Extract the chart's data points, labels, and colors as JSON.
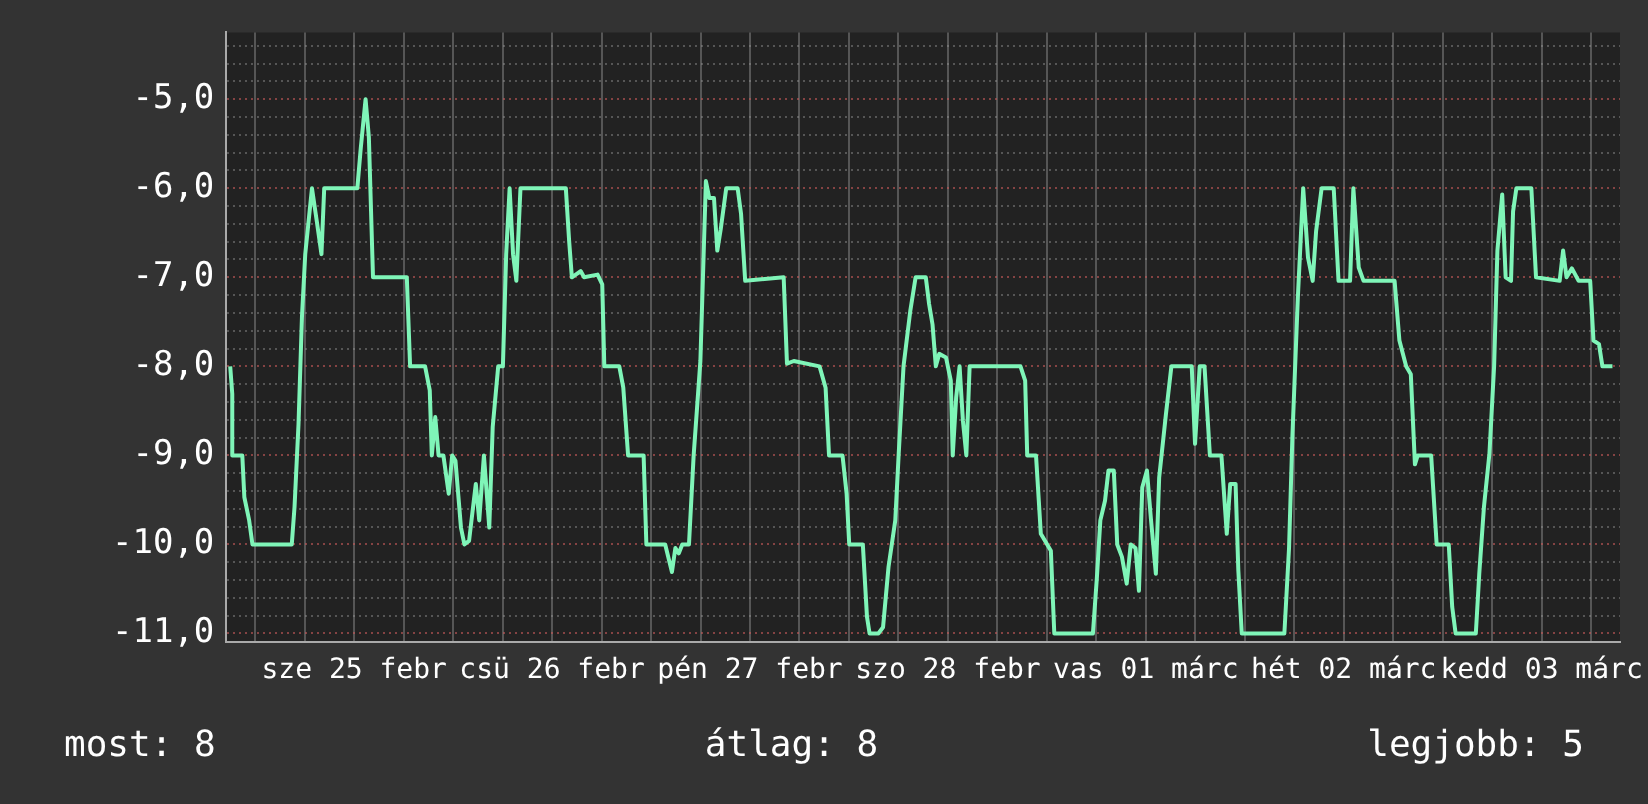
{
  "chart_data": {
    "type": "line",
    "xlim": [
      "--02-24T20:30",
      "--03-03T21:30"
    ],
    "ylim": [
      -11.1,
      -4.25
    ],
    "xticks": [
      {
        "value": "--02-25T00:00",
        "label": null
      },
      {
        "value": "--02-25T06:00",
        "label": null
      },
      {
        "value": "--02-25T12:00",
        "label": "sze 25 febr"
      },
      {
        "value": "--02-25T18:00",
        "label": null
      },
      {
        "value": "--02-26T00:00",
        "label": null
      },
      {
        "value": "--02-26T06:00",
        "label": null
      },
      {
        "value": "--02-26T12:00",
        "label": "csü 26 febr"
      },
      {
        "value": "--02-26T18:00",
        "label": null
      },
      {
        "value": "--02-27T00:00",
        "label": null
      },
      {
        "value": "--02-27T06:00",
        "label": null
      },
      {
        "value": "--02-27T12:00",
        "label": "pén 27 febr"
      },
      {
        "value": "--02-27T18:00",
        "label": null
      },
      {
        "value": "--02-28T00:00",
        "label": null
      },
      {
        "value": "--02-28T06:00",
        "label": null
      },
      {
        "value": "--02-28T12:00",
        "label": "szo 28 febr"
      },
      {
        "value": "--02-28T18:00",
        "label": null
      },
      {
        "value": "--03-01T00:00",
        "label": null
      },
      {
        "value": "--03-01T06:00",
        "label": null
      },
      {
        "value": "--03-01T12:00",
        "label": "vas 01 márc"
      },
      {
        "value": "--03-01T18:00",
        "label": null
      },
      {
        "value": "--03-02T00:00",
        "label": null
      },
      {
        "value": "--03-02T06:00",
        "label": null
      },
      {
        "value": "--03-02T12:00",
        "label": "hét 02 márc"
      },
      {
        "value": "--03-02T18:00",
        "label": null
      },
      {
        "value": "--03-03T00:00",
        "label": null
      },
      {
        "value": "--03-03T06:00",
        "label": null
      },
      {
        "value": "--03-03T12:00",
        "label": "kedd 03 márc"
      },
      {
        "value": "--03-03T18:00",
        "label": null
      }
    ],
    "yticks": [
      {
        "value": -11,
        "label": "-11,0"
      },
      {
        "value": -10.8,
        "label": null
      },
      {
        "value": -10.6,
        "label": null
      },
      {
        "value": -10.4,
        "label": null
      },
      {
        "value": -10.2,
        "label": null
      },
      {
        "value": -10,
        "label": "-10,0"
      },
      {
        "value": -9.8,
        "label": null
      },
      {
        "value": -9.6,
        "label": null
      },
      {
        "value": -9.4,
        "label": null
      },
      {
        "value": -9.2,
        "label": null
      },
      {
        "value": -9,
        "label": "-9,0"
      },
      {
        "value": -8.8,
        "label": null
      },
      {
        "value": -8.6,
        "label": null
      },
      {
        "value": -8.4,
        "label": null
      },
      {
        "value": -8.2,
        "label": null
      },
      {
        "value": -8,
        "label": "-8,0"
      },
      {
        "value": -7.8,
        "label": null
      },
      {
        "value": -7.6,
        "label": null
      },
      {
        "value": -7.4,
        "label": null
      },
      {
        "value": -7.2,
        "label": null
      },
      {
        "value": -7,
        "label": "-7,0"
      },
      {
        "value": -6.8,
        "label": null
      },
      {
        "value": -6.6,
        "label": null
      },
      {
        "value": -6.4,
        "label": null
      },
      {
        "value": -6.2,
        "label": null
      },
      {
        "value": -6,
        "label": "-6,0"
      },
      {
        "value": -5.8,
        "label": null
      },
      {
        "value": -5.6,
        "label": null
      },
      {
        "value": -5.4,
        "label": null
      },
      {
        "value": -5.2,
        "label": null
      },
      {
        "value": -5,
        "label": "-5,0"
      },
      {
        "value": -4.8,
        "label": null
      },
      {
        "value": -4.6,
        "label": null
      },
      {
        "value": -4.4,
        "label": null
      }
    ],
    "grid": true,
    "legend": false,
    "marker": "none",
    "line_style": "solid",
    "annotations": [
      "most: 8",
      "átlag: 8",
      "legjobb: 5"
    ],
    "series": [
      {
        "color": "#7ff5b8",
        "x": [
          "--02-24T20:58",
          "--02-24T21:13",
          "--02-24T21:13",
          "--02-24T22:26",
          "--02-24T22:41",
          "--02-24T23:16",
          "--02-24T23:40",
          "--02-25T04:26",
          "--02-25T04:46",
          "--02-25T05:15",
          "--02-25T05:40",
          "--02-25T06:04",
          "--02-25T06:53",
          "--02-25T07:28",
          "--02-25T08:02",
          "--02-25T08:22",
          "--02-25T12:23",
          "--02-25T12:48",
          "--02-25T13:23",
          "--02-25T13:47",
          "--02-25T14:17",
          "--02-25T18:23",
          "--02-25T18:47",
          "--02-25T20:36",
          "--02-25T21:10",
          "--02-25T21:25",
          "--02-25T21:50",
          "--02-25T22:14",
          "--02-25T22:49",
          "--02-25T23:28",
          "--02-25T23:53",
          "--02-26T00:17",
          "--02-26T00:57",
          "--02-26T01:22",
          "--02-26T01:56",
          "--02-26T02:45",
          "--02-26T03:10",
          "--02-26T03:44",
          "--02-26T04:23",
          "--02-26T04:48",
          "--02-26T05:28",
          "--02-26T06:02",
          "--02-26T06:26",
          "--02-26T06:51",
          "--02-26T07:16",
          "--02-26T07:40",
          "--02-26T08:10",
          "--02-26T13:40",
          "--02-26T14:04",
          "--02-26T14:24",
          "--02-26T15:28",
          "--02-26T15:53",
          "--02-26T17:31",
          "--02-26T18:05",
          "--02-26T18:20",
          "--02-26T20:09",
          "--02-26T20:38",
          "--02-26T21:13",
          "--02-26T23:06",
          "--02-26T23:26",
          "--02-27T01:43",
          "--02-27T02:32",
          "--02-27T02:57",
          "--02-27T03:22",
          "--02-27T03:47",
          "--02-27T04:36",
          "--02-27T05:10",
          "--02-27T05:35",
          "--02-27T05:59",
          "--02-27T06:39",
          "--02-27T07:04",
          "--02-27T07:38",
          "--02-27T08:02",
          "--02-27T08:27",
          "--02-27T09:07",
          "--02-27T10:30",
          "--02-27T10:55",
          "--02-27T11:25",
          "--02-27T16:05",
          "--02-27T16:29",
          "--02-27T17:19",
          "--02-27T20:26",
          "--02-27T21:10",
          "--02-27T21:35",
          "--02-27T23:13",
          "--02-27T23:43",
          "--02-28T00:02",
          "--02-28T01:41",
          "--02-28T02:11",
          "--02-28T02:30",
          "--02-28T03:34",
          "--02-28T04:08",
          "--02-28T04:48",
          "--02-28T05:37",
          "--02-28T06:02",
          "--02-28T06:37",
          "--02-28T07:26",
          "--02-28T08:05",
          "--02-28T09:19",
          "--02-28T09:43",
          "--02-28T10:08",
          "--02-28T10:32",
          "--02-28T10:57",
          "--02-28T11:46",
          "--02-28T12:21",
          "--02-28T12:35",
          "--02-28T13:00",
          "--02-28T13:25",
          "--02-28T13:49",
          "--02-28T14:14",
          "--02-28T14:38",
          "--02-28T20:48",
          "--02-28T21:22",
          "--02-28T21:37",
          "--02-28T22:41",
          "--02-28T23:16",
          "--03-01T00:29",
          "--03-01T00:54",
          "--03-01T05:35",
          "--03-01T06:04",
          "--03-01T06:29",
          "--03-01T07:03",
          "--03-01T07:28",
          "--03-01T08:07",
          "--03-01T08:32",
          "--03-01T09:06",
          "--03-01T09:41",
          "--03-01T10:10",
          "--03-01T10:45",
          "--03-01T11:10",
          "--03-01T11:34",
          "--03-01T12:08",
          "--03-01T12:38",
          "--03-01T13:13",
          "--03-01T13:37",
          "--03-01T14:26",
          "--03-01T15:06",
          "--03-01T17:34",
          "--03-01T17:58",
          "--03-01T18:32",
          "--03-01T19:07",
          "--03-01T19:46",
          "--03-01T21:10",
          "--03-01T21:49",
          "--03-01T22:14",
          "--03-01T22:53",
          "--03-01T23:13",
          "--03-01T23:38",
          "--03-02T04:48",
          "--03-02T05:22",
          "--03-02T05:47",
          "--03-02T06:26",
          "--03-02T07:05",
          "--03-02T07:40",
          "--03-02T08:14",
          "--03-02T08:39",
          "--03-02T09:19",
          "--03-02T10:47",
          "--03-02T11:22",
          "--03-02T12:46",
          "--03-02T13:10",
          "--03-02T13:49",
          "--03-02T14:24",
          "--03-02T18:10",
          "--03-02T18:45",
          "--03-02T19:34",
          "--03-02T20:08",
          "--03-02T20:38",
          "--03-02T20:58",
          "--03-02T22:36",
          "--03-02T23:16",
          "--03-03T00:44",
          "--03-03T01:09",
          "--03-03T01:34",
          "--03-03T04:01",
          "--03-03T04:26",
          "--03-03T05:00",
          "--03-03T05:40",
          "--03-03T06:14",
          "--03-03T06:38",
          "--03-03T07:13",
          "--03-03T07:38",
          "--03-03T08:17",
          "--03-03T08:32",
          "--03-03T08:56",
          "--03-03T10:45",
          "--03-03T11:19",
          "--03-03T14:11",
          "--03-03T14:36",
          "--03-03T15:01",
          "--03-03T15:40",
          "--03-03T16:29",
          "--03-03T17:53",
          "--03-03T18:17",
          "--03-03T18:57",
          "--03-03T19:22",
          "--03-03T20:35"
        ],
        "values": [
          -8.0,
          -8.31,
          -9.0,
          -9.0,
          -9.47,
          -9.73,
          -10.0,
          -10.0,
          -9.58,
          -8.65,
          -7.45,
          -6.74,
          -6.0,
          -6.37,
          -6.74,
          -6.0,
          -6.0,
          -5.55,
          -5.0,
          -5.43,
          -7.0,
          -7.0,
          -8.0,
          -8.0,
          -8.27,
          -9.0,
          -8.57,
          -9.0,
          -9.0,
          -9.43,
          -9.0,
          -9.06,
          -9.81,
          -10.0,
          -9.96,
          -9.32,
          -9.73,
          -9.0,
          -9.81,
          -8.68,
          -8.0,
          -8.0,
          -6.74,
          -6.0,
          -6.74,
          -7.04,
          -6.0,
          -6.0,
          -6.59,
          -7.0,
          -6.93,
          -7.0,
          -6.97,
          -7.08,
          -8.0,
          -8.0,
          -8.24,
          -9.0,
          -9.0,
          -10.0,
          -10.0,
          -10.31,
          -10.04,
          -10.1,
          -10.0,
          -10.0,
          -9.0,
          -8.46,
          -7.94,
          -5.92,
          -6.11,
          -6.11,
          -6.7,
          -6.46,
          -6.0,
          -6.0,
          -6.29,
          -7.04,
          -7.0,
          -7.97,
          -7.94,
          -8.0,
          -8.24,
          -9.0,
          -9.0,
          -9.43,
          -10.0,
          -10.0,
          -10.81,
          -11.0,
          -11.0,
          -10.93,
          -10.25,
          -9.73,
          -8.98,
          -8.0,
          -7.38,
          -7.0,
          -7.0,
          -7.3,
          -7.53,
          -8.0,
          -7.86,
          -7.9,
          -8.16,
          -9.0,
          -8.35,
          -8.0,
          -8.61,
          -9.0,
          -8.0,
          -8.0,
          -8.16,
          -9.0,
          -9.0,
          -9.88,
          -10.07,
          -11.0,
          -11.0,
          -10.37,
          -9.73,
          -9.51,
          -9.17,
          -9.17,
          -10.0,
          -10.14,
          -10.44,
          -10.0,
          -10.04,
          -10.52,
          -9.36,
          -9.17,
          -9.73,
          -10.33,
          -9.25,
          -8.54,
          -8.0,
          -8.0,
          -8.87,
          -8.0,
          -8.0,
          -9.0,
          -9.0,
          -9.88,
          -9.32,
          -9.32,
          -10.29,
          -11.0,
          -11.0,
          -10.04,
          -8.76,
          -7.23,
          -6.0,
          -6.78,
          -7.04,
          -6.48,
          -6.0,
          -6.0,
          -7.04,
          -7.04,
          -6.0,
          -6.89,
          -7.04,
          -7.04,
          -7.71,
          -8.0,
          -8.09,
          -9.1,
          -9.0,
          -9.0,
          -10.0,
          -10.0,
          -10.7,
          -11.0,
          -11.0,
          -10.33,
          -9.58,
          -8.98,
          -8.0,
          -6.7,
          -6.07,
          -7.0,
          -7.04,
          -6.26,
          -6.0,
          -6.0,
          -7.0,
          -7.04,
          -6.7,
          -7.0,
          -6.9,
          -7.04,
          -7.04,
          -7.71,
          -7.75,
          -8.0,
          -8.0
        ]
      }
    ]
  }
}
